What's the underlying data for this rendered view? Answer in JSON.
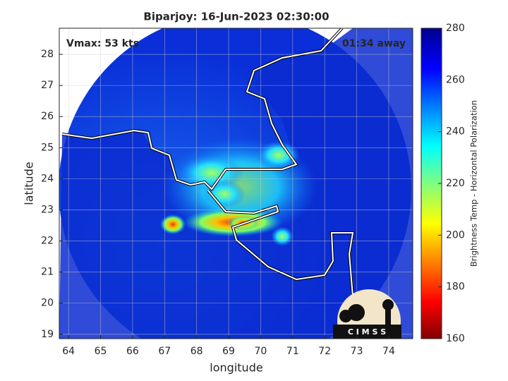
{
  "chart_data": {
    "type": "map",
    "title": "Biparjoy: 16-Jun-2023 02:30:00",
    "annotations": [
      "Vmax: 53 kts",
      "01:34 away"
    ],
    "xlabel": "longitude",
    "ylabel": "latitude",
    "xlim": [
      63.71,
      74.75
    ],
    "xticks": [
      64,
      65,
      66,
      67,
      68,
      69,
      70,
      71,
      72,
      73,
      74
    ],
    "ylim": [
      18.86,
      28.84
    ],
    "yticks": [
      19,
      20,
      21,
      22,
      23,
      24,
      25,
      26,
      27,
      28
    ],
    "grid": true,
    "colorbar": {
      "label": "Brightness Temp - Horizontal Polarization",
      "lim": [
        160,
        280
      ],
      "ticks": [
        160,
        180,
        200,
        220,
        240,
        260,
        280
      ]
    },
    "logo": "C I M S S"
  }
}
